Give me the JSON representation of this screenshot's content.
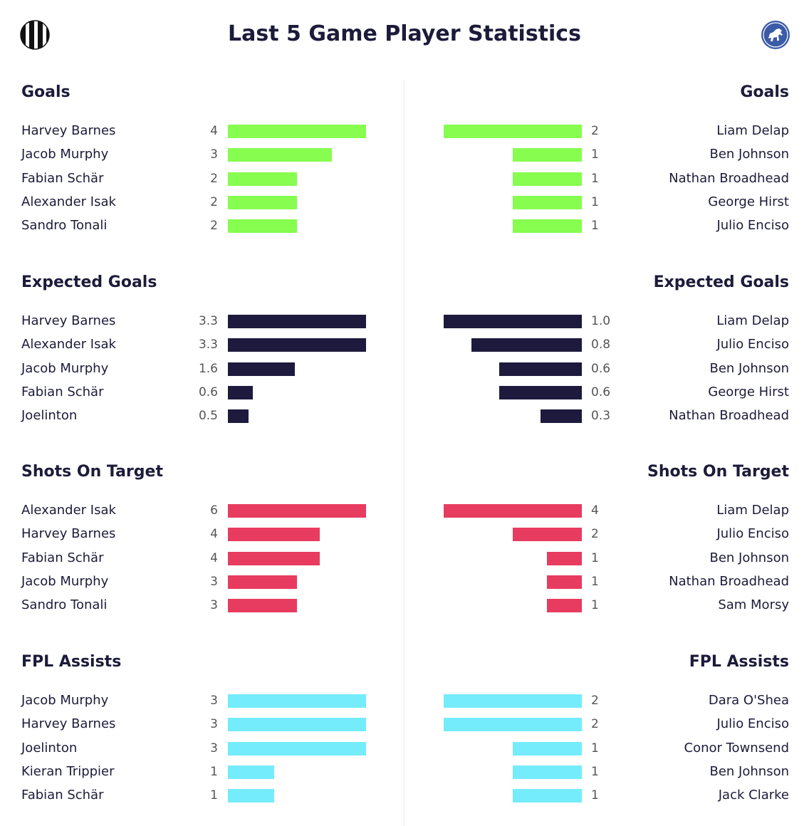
{
  "title": "Last 5 Game Player Statistics",
  "icons": {
    "left": "striped-club-crest-icon",
    "right": "horse-club-crest-icon"
  },
  "colors": {
    "goals": "#86fd4f",
    "xg": "#1d1a3d",
    "shots": "#e73c5f",
    "assists": "#74ecfb",
    "text": "#1c1b3a",
    "value": "#555555",
    "right_crest": "#3b5ba6"
  },
  "chart_data": [
    {
      "type": "bar",
      "key": "goals",
      "title": "Goals",
      "left": {
        "players": [
          "Harvey Barnes",
          "Jacob Murphy",
          "Fabian Schär",
          "Alexander Isak",
          "Sandro Tonali"
        ],
        "values": [
          "4",
          "3",
          "2",
          "2",
          "2"
        ]
      },
      "right": {
        "players": [
          "Liam Delap",
          "Ben Johnson",
          "Nathan Broadhead",
          "George Hirst",
          "Julio Enciso"
        ],
        "values": [
          "2",
          "1",
          "1",
          "1",
          "1"
        ]
      }
    },
    {
      "type": "bar",
      "key": "xg",
      "title": "Expected Goals",
      "left": {
        "players": [
          "Harvey Barnes",
          "Alexander Isak",
          "Jacob Murphy",
          "Fabian Schär",
          "Joelinton"
        ],
        "values": [
          "3.3",
          "3.3",
          "1.6",
          "0.6",
          "0.5"
        ]
      },
      "right": {
        "players": [
          "Liam Delap",
          "Julio Enciso",
          "Ben Johnson",
          "George Hirst",
          "Nathan Broadhead"
        ],
        "values": [
          "1.0",
          "0.8",
          "0.6",
          "0.6",
          "0.3"
        ]
      }
    },
    {
      "type": "bar",
      "key": "shots",
      "title": "Shots On Target",
      "left": {
        "players": [
          "Alexander Isak",
          "Harvey Barnes",
          "Fabian Schär",
          "Jacob Murphy",
          "Sandro Tonali"
        ],
        "values": [
          "6",
          "4",
          "4",
          "3",
          "3"
        ]
      },
      "right": {
        "players": [
          "Liam Delap",
          "Julio Enciso",
          "Ben Johnson",
          "Nathan Broadhead",
          "Sam Morsy"
        ],
        "values": [
          "4",
          "2",
          "1",
          "1",
          "1"
        ]
      }
    },
    {
      "type": "bar",
      "key": "assists",
      "title": "FPL Assists",
      "left": {
        "players": [
          "Jacob Murphy",
          "Harvey Barnes",
          "Joelinton",
          "Kieran Trippier",
          "Fabian Schär"
        ],
        "values": [
          "3",
          "3",
          "3",
          "1",
          "1"
        ]
      },
      "right": {
        "players": [
          "Dara O'Shea",
          "Julio Enciso",
          "Conor Townsend",
          "Ben Johnson",
          "Jack Clarke"
        ],
        "values": [
          "2",
          "2",
          "1",
          "1",
          "1"
        ]
      }
    }
  ]
}
